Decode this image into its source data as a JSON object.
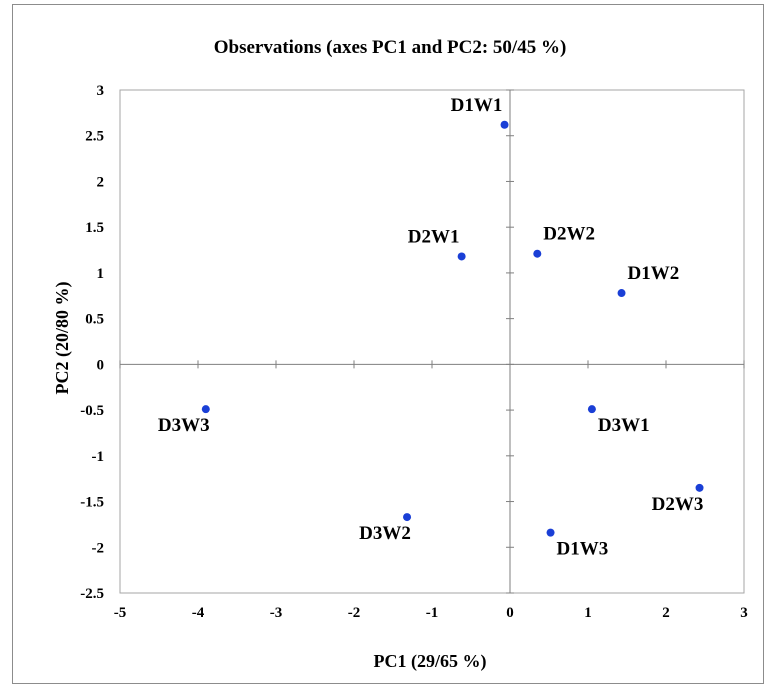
{
  "chart_data": {
    "type": "scatter",
    "title": "Observations (axes PC1 and PC2: 50/45 %)",
    "xlabel": "PC1 (29/65 %)",
    "ylabel": "PC2 (20/80 %)",
    "xlim": [
      -5,
      3
    ],
    "ylim": [
      -2.5,
      3
    ],
    "xticks": [
      -5,
      -4,
      -3,
      -2,
      -1,
      0,
      1,
      2,
      3
    ],
    "yticks": [
      -2.5,
      -2,
      -1.5,
      -1,
      -0.5,
      0,
      0.5,
      1,
      1.5,
      2,
      2.5,
      3
    ],
    "grid": false,
    "marker_color": "#1a3fd6",
    "points": [
      {
        "label": "D1W1",
        "x": -0.07,
        "y": 2.62,
        "label_pos": "above"
      },
      {
        "label": "D2W1",
        "x": -0.62,
        "y": 1.18,
        "label_pos": "above"
      },
      {
        "label": "D2W2",
        "x": 0.35,
        "y": 1.21,
        "label_pos": "above-right"
      },
      {
        "label": "D1W2",
        "x": 1.43,
        "y": 0.78,
        "label_pos": "above-right"
      },
      {
        "label": "D3W3",
        "x": -3.9,
        "y": -0.49,
        "label_pos": "below"
      },
      {
        "label": "D3W1",
        "x": 1.05,
        "y": -0.49,
        "label_pos": "below-right"
      },
      {
        "label": "D2W3",
        "x": 2.43,
        "y": -1.35,
        "label_pos": "below"
      },
      {
        "label": "D3W2",
        "x": -1.32,
        "y": -1.67,
        "label_pos": "below"
      },
      {
        "label": "D1W3",
        "x": 0.52,
        "y": -1.84,
        "label_pos": "below-right"
      }
    ]
  }
}
